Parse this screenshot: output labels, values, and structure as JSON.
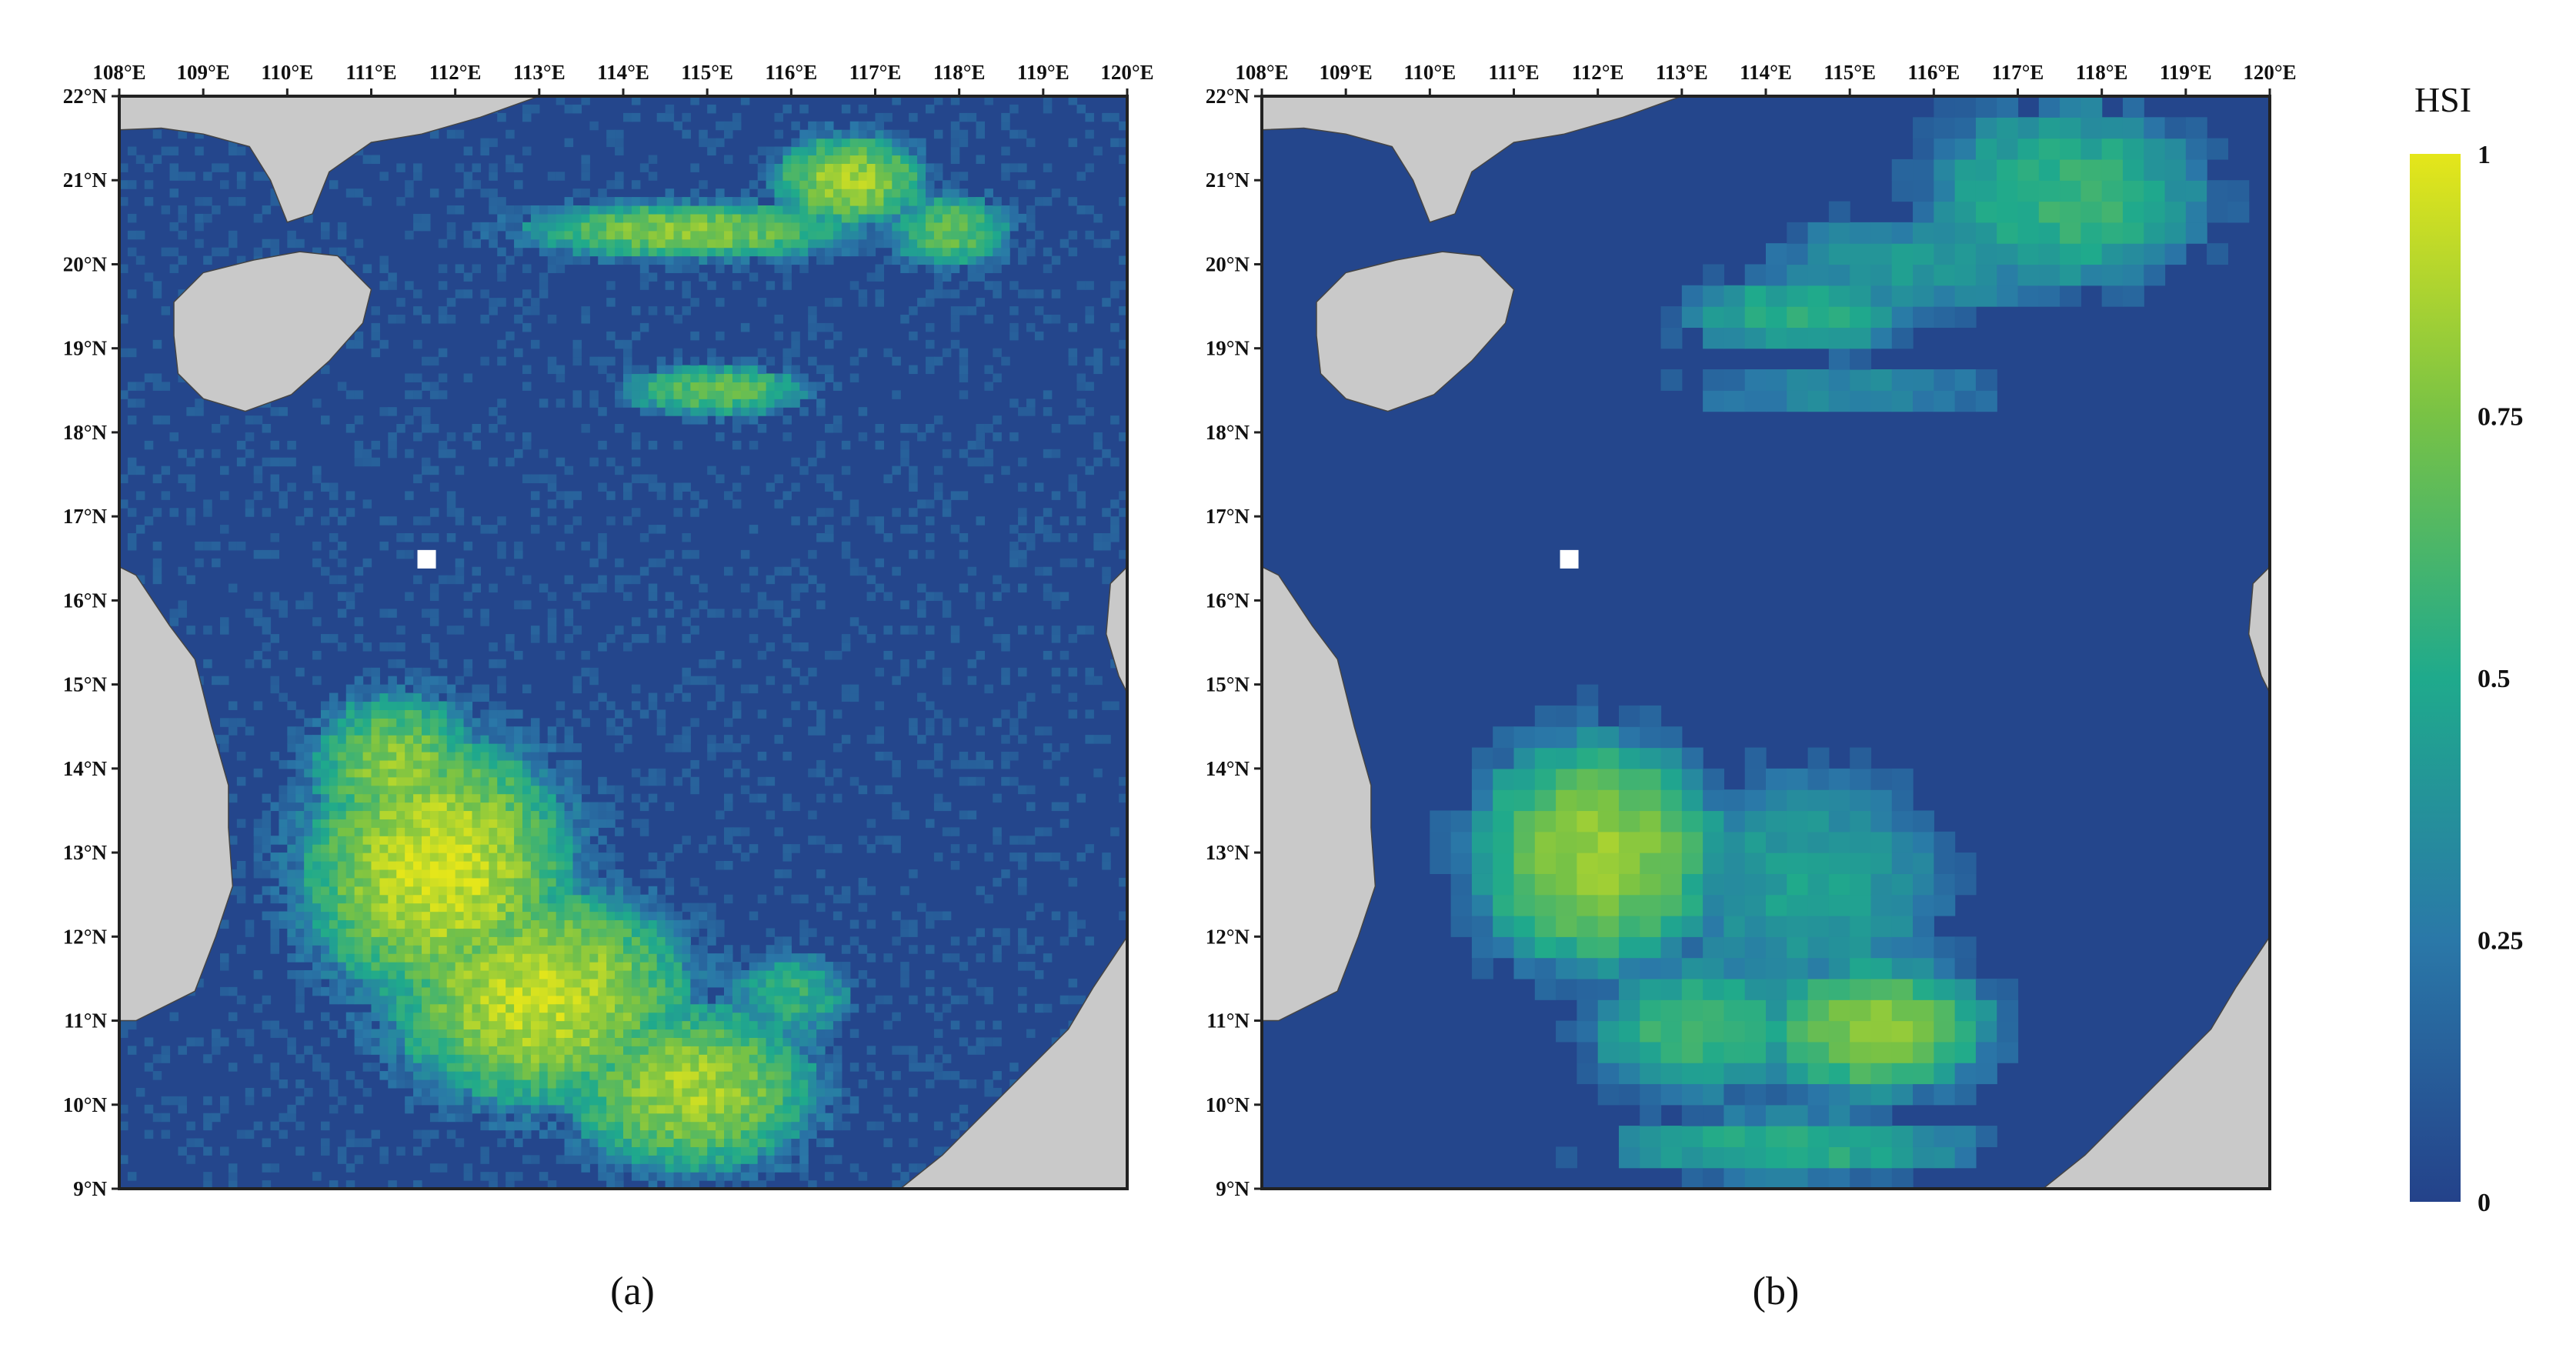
{
  "figure": {
    "colors": {
      "background": "#2a4b8d",
      "land": "#c9c9c9",
      "land_stroke": "#444444",
      "frame": "#222222",
      "no_data": "#ffffff"
    },
    "colorscale": {
      "stops": [
        {
          "value": 0,
          "color": "#24428a"
        },
        {
          "value": 0.25,
          "color": "#2a78a8"
        },
        {
          "value": 0.5,
          "color": "#1faa8c"
        },
        {
          "value": 0.75,
          "color": "#78c245"
        },
        {
          "value": 1,
          "color": "#e5e61a"
        }
      ]
    },
    "map_extent": {
      "lon": [
        108,
        120
      ],
      "lat": [
        9,
        22
      ]
    },
    "lon_ticks": [
      "108°E",
      "109°E",
      "110°E",
      "111°E",
      "112°E",
      "113°E",
      "114°E",
      "115°E",
      "116°E",
      "117°E",
      "118°E",
      "119°E",
      "120°E"
    ],
    "lat_ticks": [
      "9°N",
      "10°N",
      "11°N",
      "12°N",
      "13°N",
      "14°N",
      "15°N",
      "16°N",
      "17°N",
      "18°N",
      "19°N",
      "20°N",
      "21°N",
      "22°N"
    ],
    "panels": [
      {
        "id": "a",
        "caption": "(a)",
        "resolution": "fine",
        "hotspots": [
          {
            "lon": 111.8,
            "lat": 12.8,
            "rx": 1.6,
            "ry": 1.6,
            "value": 0.95
          },
          {
            "lon": 113.0,
            "lat": 11.3,
            "rx": 1.8,
            "ry": 1.3,
            "value": 0.92
          },
          {
            "lon": 114.8,
            "lat": 10.2,
            "rx": 1.5,
            "ry": 1.0,
            "value": 0.85
          },
          {
            "lon": 111.3,
            "lat": 14.0,
            "rx": 1.0,
            "ry": 0.9,
            "value": 0.8
          },
          {
            "lon": 116.0,
            "lat": 11.3,
            "rx": 0.7,
            "ry": 0.5,
            "value": 0.55
          }
        ],
        "ridges": [
          {
            "lon": 116.7,
            "lat": 21.0,
            "rx": 0.9,
            "ry": 0.55,
            "value": 0.85
          },
          {
            "lon": 114.8,
            "lat": 20.4,
            "rx": 2.0,
            "ry": 0.35,
            "value": 0.78
          },
          {
            "lon": 115.1,
            "lat": 18.5,
            "rx": 1.1,
            "ry": 0.3,
            "value": 0.7
          },
          {
            "lon": 117.9,
            "lat": 20.4,
            "rx": 0.7,
            "ry": 0.45,
            "value": 0.7
          }
        ]
      },
      {
        "id": "b",
        "caption": "(b)",
        "resolution": "coarse",
        "hotspots": [
          {
            "lon": 112.0,
            "lat": 13.0,
            "rx": 1.5,
            "ry": 1.4,
            "value": 0.82
          },
          {
            "lon": 115.3,
            "lat": 10.9,
            "rx": 1.4,
            "ry": 0.8,
            "value": 0.78
          },
          {
            "lon": 113.2,
            "lat": 10.9,
            "rx": 1.3,
            "ry": 0.8,
            "value": 0.62
          },
          {
            "lon": 114.3,
            "lat": 9.5,
            "rx": 2.2,
            "ry": 0.4,
            "value": 0.55
          },
          {
            "lon": 114.5,
            "lat": 12.6,
            "rx": 1.7,
            "ry": 1.4,
            "value": 0.45
          }
        ],
        "ridges": [
          {
            "lon": 117.6,
            "lat": 20.8,
            "rx": 1.7,
            "ry": 1.1,
            "value": 0.58
          },
          {
            "lon": 114.4,
            "lat": 19.4,
            "rx": 1.4,
            "ry": 0.5,
            "value": 0.55
          },
          {
            "lon": 115.8,
            "lat": 20.0,
            "rx": 1.8,
            "ry": 0.6,
            "value": 0.42
          },
          {
            "lon": 115.0,
            "lat": 18.5,
            "rx": 2.0,
            "ry": 0.25,
            "value": 0.38
          }
        ]
      }
    ],
    "legend": {
      "title": "HSI",
      "ticks": [
        {
          "label": "1",
          "value": 1
        },
        {
          "label": "0.75",
          "value": 0.75
        },
        {
          "label": "0.5",
          "value": 0.5
        },
        {
          "label": "0.25",
          "value": 0.25
        },
        {
          "label": "0",
          "value": 0
        }
      ]
    }
  }
}
